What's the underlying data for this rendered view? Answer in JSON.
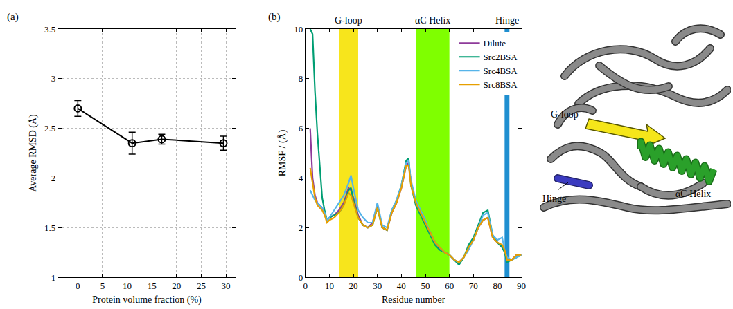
{
  "chart_data": [
    {
      "type": "line",
      "label": "(a)",
      "x_label": "Protein volume fraction (%)",
      "y_label": "Average RMSD (Å)",
      "x": [
        0,
        11,
        17,
        29.5
      ],
      "series": [
        {
          "values": [
            2.7,
            2.35,
            2.39,
            2.35
          ],
          "error": [
            0.08,
            0.11,
            0.05,
            0.07
          ],
          "color": "#000000",
          "marker": "circle-open"
        }
      ],
      "xlim": [
        -4,
        32
      ],
      "xticks": [
        0,
        5,
        10,
        15,
        20,
        25,
        30
      ],
      "ylim": [
        1,
        3.5
      ],
      "yticks": [
        1,
        1.5,
        2,
        2.5,
        3,
        3.5
      ],
      "grid": true
    },
    {
      "type": "line",
      "label": "(b)",
      "x_label": "Residue number",
      "y_label": "RMSF / (Å)",
      "x": [
        2,
        3,
        4,
        5,
        6,
        7,
        8,
        9,
        10,
        12,
        14,
        16,
        18,
        19,
        20,
        22,
        24,
        26,
        28,
        30,
        32,
        34,
        36,
        38,
        40,
        42,
        43,
        44,
        46,
        48,
        50,
        52,
        54,
        56,
        58,
        60,
        62,
        64,
        66,
        68,
        70,
        72,
        74,
        76,
        78,
        80,
        82,
        83,
        84,
        86,
        88,
        90
      ],
      "series": [
        {
          "name": "Dilute",
          "color": "#8e3a9a",
          "values": [
            6.0,
            4.0,
            3.3,
            3.0,
            2.9,
            2.8,
            2.6,
            2.3,
            2.4,
            2.5,
            2.7,
            3.0,
            3.6,
            3.5,
            3.2,
            2.5,
            2.1,
            2.0,
            2.2,
            2.9,
            2.0,
            1.9,
            2.6,
            3.0,
            3.6,
            4.5,
            4.6,
            3.8,
            3.0,
            2.6,
            2.2,
            1.8,
            1.4,
            1.2,
            1.0,
            0.9,
            0.7,
            0.6,
            0.8,
            1.2,
            1.5,
            2.0,
            2.3,
            2.4,
            1.6,
            1.4,
            1.2,
            1.1,
            0.7,
            0.7,
            0.9,
            0.9
          ]
        },
        {
          "name": "Src2BSA",
          "color": "#009e73",
          "values": [
            10.0,
            9.8,
            7.5,
            5.8,
            4.5,
            3.2,
            2.7,
            2.3,
            2.4,
            2.5,
            2.6,
            2.9,
            3.5,
            3.6,
            3.1,
            2.4,
            2.1,
            2.0,
            2.1,
            2.8,
            2.0,
            1.9,
            2.7,
            3.1,
            3.7,
            4.7,
            4.8,
            3.7,
            2.9,
            2.5,
            2.1,
            1.7,
            1.3,
            1.1,
            1.0,
            0.9,
            0.7,
            0.5,
            0.8,
            1.3,
            1.6,
            2.1,
            2.6,
            2.7,
            1.7,
            1.4,
            1.2,
            1.0,
            0.6,
            0.7,
            0.8,
            0.9
          ]
        },
        {
          "name": "Src4BSA",
          "color": "#56b4e9",
          "values": [
            3.5,
            3.3,
            3.1,
            3.0,
            2.9,
            2.8,
            2.6,
            2.3,
            2.4,
            2.7,
            3.0,
            3.3,
            3.8,
            4.1,
            3.6,
            2.7,
            2.4,
            2.2,
            2.2,
            3.0,
            2.1,
            2.0,
            2.7,
            3.1,
            3.7,
            4.6,
            4.7,
            3.9,
            3.1,
            2.7,
            2.3,
            1.8,
            1.4,
            1.2,
            1.0,
            0.9,
            0.7,
            0.6,
            0.8,
            1.1,
            1.5,
            2.0,
            2.5,
            2.6,
            1.7,
            1.5,
            1.6,
            1.1,
            0.8,
            0.7,
            0.8,
            0.9
          ]
        },
        {
          "name": "Src8BSA",
          "color": "#e69f00",
          "values": [
            4.4,
            3.8,
            3.2,
            2.9,
            2.8,
            2.7,
            2.5,
            2.2,
            2.3,
            2.4,
            2.6,
            2.9,
            3.4,
            3.3,
            3.0,
            2.4,
            2.1,
            2.0,
            2.1,
            2.8,
            2.0,
            1.9,
            2.6,
            3.0,
            3.6,
            4.5,
            4.5,
            3.7,
            3.0,
            2.6,
            2.2,
            1.8,
            1.4,
            1.2,
            1.0,
            0.9,
            0.7,
            0.6,
            0.8,
            1.2,
            1.5,
            2.0,
            2.3,
            2.4,
            1.6,
            1.4,
            1.3,
            1.1,
            0.7,
            0.7,
            0.9,
            0.9
          ]
        }
      ],
      "regions": [
        {
          "label": "G-loop",
          "start": 14,
          "end": 22,
          "color": "#f7e51c"
        },
        {
          "label": "αC Helix",
          "start": 46,
          "end": 60,
          "color": "#7fff00"
        },
        {
          "label": "Hinge",
          "start": 83,
          "end": 85,
          "color": "#1f8fd0"
        }
      ],
      "xlim": [
        0,
        90
      ],
      "xticks": [
        0,
        10,
        20,
        30,
        40,
        50,
        60,
        70,
        80,
        90
      ],
      "ylim": [
        0,
        10
      ],
      "yticks": [
        0,
        2,
        4,
        6,
        8,
        10
      ],
      "grid": false,
      "legend": "upper right"
    }
  ],
  "structure_image": {
    "labels": {
      "g_loop": "G-loop",
      "hinge": "Hinge",
      "helix": "αC Helix"
    }
  }
}
